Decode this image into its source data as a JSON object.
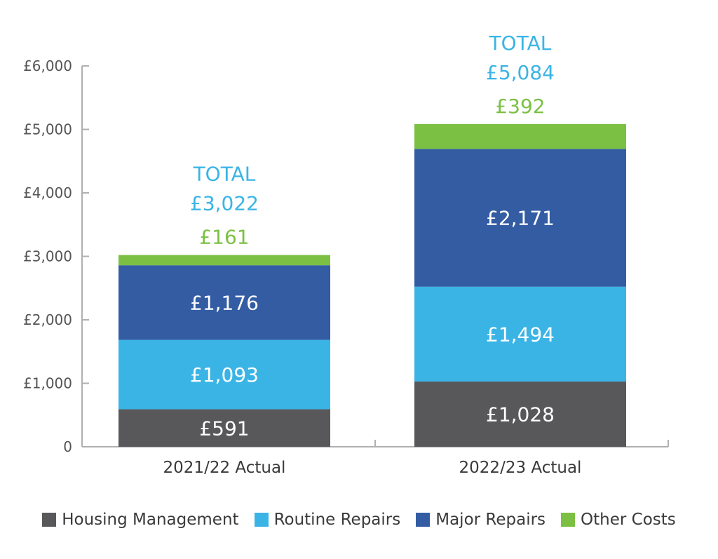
{
  "chart_data": {
    "type": "bar",
    "stacked": true,
    "categories": [
      "2021/22 Actual",
      "2022/23 Actual"
    ],
    "series": [
      {
        "name": "Housing Management",
        "color": "#58585a",
        "values": [
          591,
          1028
        ],
        "labels": [
          "£591",
          "£1,028"
        ]
      },
      {
        "name": "Routine Repairs",
        "color": "#3ab4e5",
        "values": [
          1093,
          1494
        ],
        "labels": [
          "£1,093",
          "£1,494"
        ]
      },
      {
        "name": "Major Repairs",
        "color": "#335ca3",
        "values": [
          1176,
          2171
        ],
        "labels": [
          "£1,176",
          "£2,171"
        ]
      },
      {
        "name": "Other Costs",
        "color": "#7bc043",
        "values": [
          161,
          392
        ],
        "labels": [
          "£161",
          "£392"
        ]
      }
    ],
    "totals": [
      {
        "heading": "TOTAL",
        "value": "£3,022"
      },
      {
        "heading": "TOTAL",
        "value": "£5,084"
      }
    ],
    "ylim": [
      0,
      6000
    ],
    "yticks": [
      0,
      1000,
      2000,
      3000,
      4000,
      5000,
      6000
    ],
    "ytick_labels": [
      "0",
      "£1,000",
      "£2,000",
      "£3,000",
      "£4,000",
      "£5,000",
      "£6,000"
    ],
    "total_color": "#3ab4e5",
    "axis_color": "#b0b0b0",
    "legend_position": "bottom",
    "grid": false
  }
}
